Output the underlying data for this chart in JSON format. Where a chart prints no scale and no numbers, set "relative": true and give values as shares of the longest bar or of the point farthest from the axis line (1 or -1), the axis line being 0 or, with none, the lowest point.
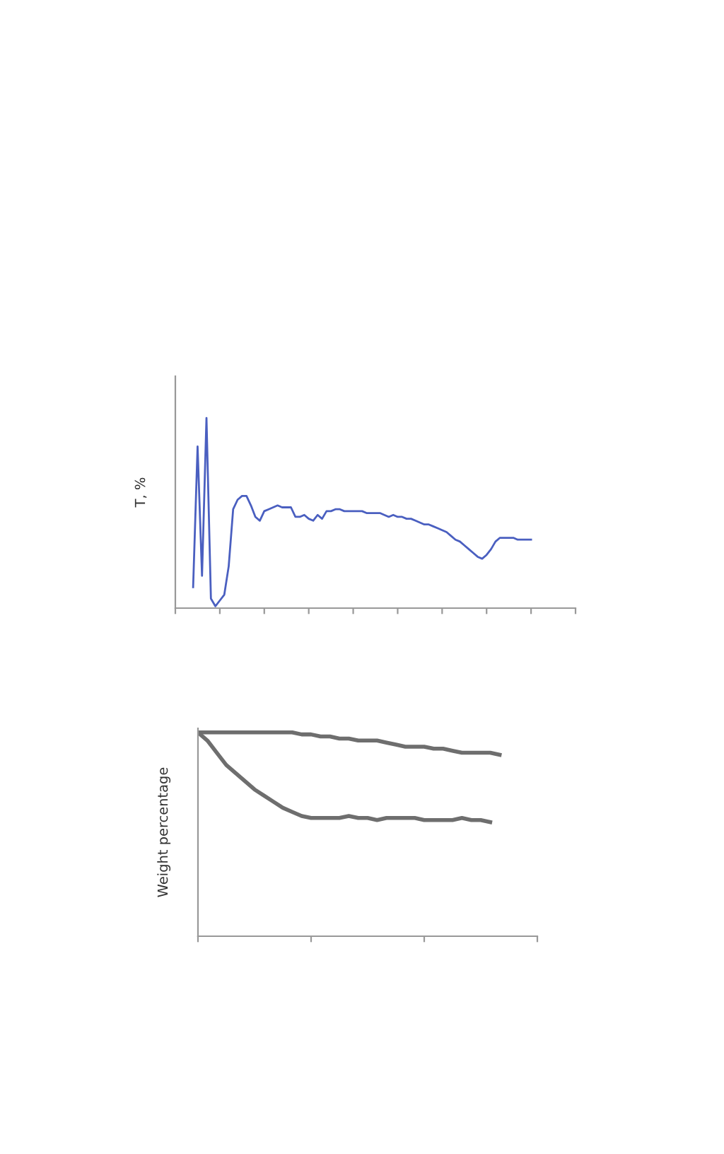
{
  "chart_data": [
    {
      "type": "line",
      "relative": true,
      "ylabel": "T, %",
      "grid": false,
      "legend": false,
      "categories": [
        null,
        null,
        null,
        null,
        null,
        null,
        null,
        null,
        null,
        null,
        null,
        null,
        null,
        null,
        null,
        null,
        null,
        null,
        null,
        null,
        null,
        null,
        null,
        null,
        null,
        null,
        null,
        null,
        null,
        null,
        null,
        null,
        null,
        null,
        null,
        null,
        null,
        null,
        null,
        null,
        null,
        null,
        null,
        null,
        null,
        null,
        null,
        null,
        null,
        null,
        null,
        null,
        null,
        null,
        null,
        null,
        null,
        null,
        null,
        null,
        null,
        null,
        null,
        null,
        null,
        null,
        null,
        null,
        null,
        null,
        null,
        null,
        null,
        null,
        null,
        null,
        null,
        null,
        null,
        null,
        null,
        null,
        null,
        null,
        null,
        null,
        null,
        null,
        null,
        null,
        null
      ],
      "series": [
        {
          "color": "#4a5fc0",
          "values": [
            null,
            null,
            null,
            null,
            0.11,
            0.85,
            0.17,
            1.0,
            0.05,
            0.01,
            0.04,
            0.07,
            0.22,
            0.52,
            0.57,
            0.59,
            0.59,
            0.54,
            0.48,
            0.46,
            0.51,
            0.52,
            0.53,
            0.54,
            0.53,
            0.53,
            0.53,
            0.48,
            0.48,
            0.49,
            0.47,
            0.46,
            0.49,
            0.47,
            0.51,
            0.51,
            0.52,
            0.52,
            0.51,
            0.51,
            0.51,
            0.51,
            0.51,
            0.5,
            0.5,
            0.5,
            0.5,
            0.49,
            0.48,
            0.49,
            0.48,
            0.48,
            0.47,
            0.47,
            0.46,
            0.45,
            0.44,
            0.44,
            0.43,
            0.42,
            0.41,
            0.4,
            0.38,
            0.36,
            0.35,
            0.33,
            0.31,
            0.29,
            0.27,
            0.26,
            0.28,
            0.31,
            0.35,
            0.37,
            0.37,
            0.37,
            0.37,
            0.36,
            0.36,
            0.36,
            0.36,
            null,
            null,
            null,
            null,
            null,
            null,
            null,
            null,
            null,
            null
          ]
        }
      ]
    },
    {
      "type": "line",
      "relative": true,
      "ylabel": "Weight percentage",
      "grid": false,
      "legend": false,
      "categories": [
        null,
        null,
        null,
        null,
        null,
        null,
        null,
        null,
        null,
        null,
        null,
        null,
        null,
        null,
        null,
        null,
        null,
        null,
        null,
        null,
        null,
        null,
        null,
        null,
        null,
        null,
        null,
        null,
        null,
        null,
        null,
        null,
        null,
        null,
        null,
        null,
        null
      ],
      "series": [
        {
          "color": "#6e6e6e",
          "values": [
            1.0,
            1.0,
            1.0,
            1.0,
            1.0,
            1.0,
            1.0,
            1.0,
            1.0,
            1.0,
            1.0,
            0.99,
            0.99,
            0.98,
            0.98,
            0.97,
            0.97,
            0.96,
            0.96,
            0.96,
            0.95,
            0.94,
            0.93,
            0.93,
            0.93,
            0.92,
            0.92,
            0.91,
            0.9,
            0.9,
            0.9,
            0.9,
            0.89,
            null,
            null,
            null,
            null
          ]
        },
        {
          "color": "#6e6e6e",
          "values": [
            1.0,
            0.96,
            0.9,
            0.84,
            0.8,
            0.76,
            0.72,
            0.69,
            0.66,
            0.63,
            0.61,
            0.59,
            0.58,
            0.58,
            0.58,
            0.58,
            0.59,
            0.58,
            0.58,
            0.57,
            0.58,
            0.58,
            0.58,
            0.58,
            0.57,
            0.57,
            0.57,
            0.57,
            0.58,
            0.57,
            0.57,
            0.56,
            null,
            null,
            null,
            null,
            null
          ]
        }
      ]
    }
  ]
}
